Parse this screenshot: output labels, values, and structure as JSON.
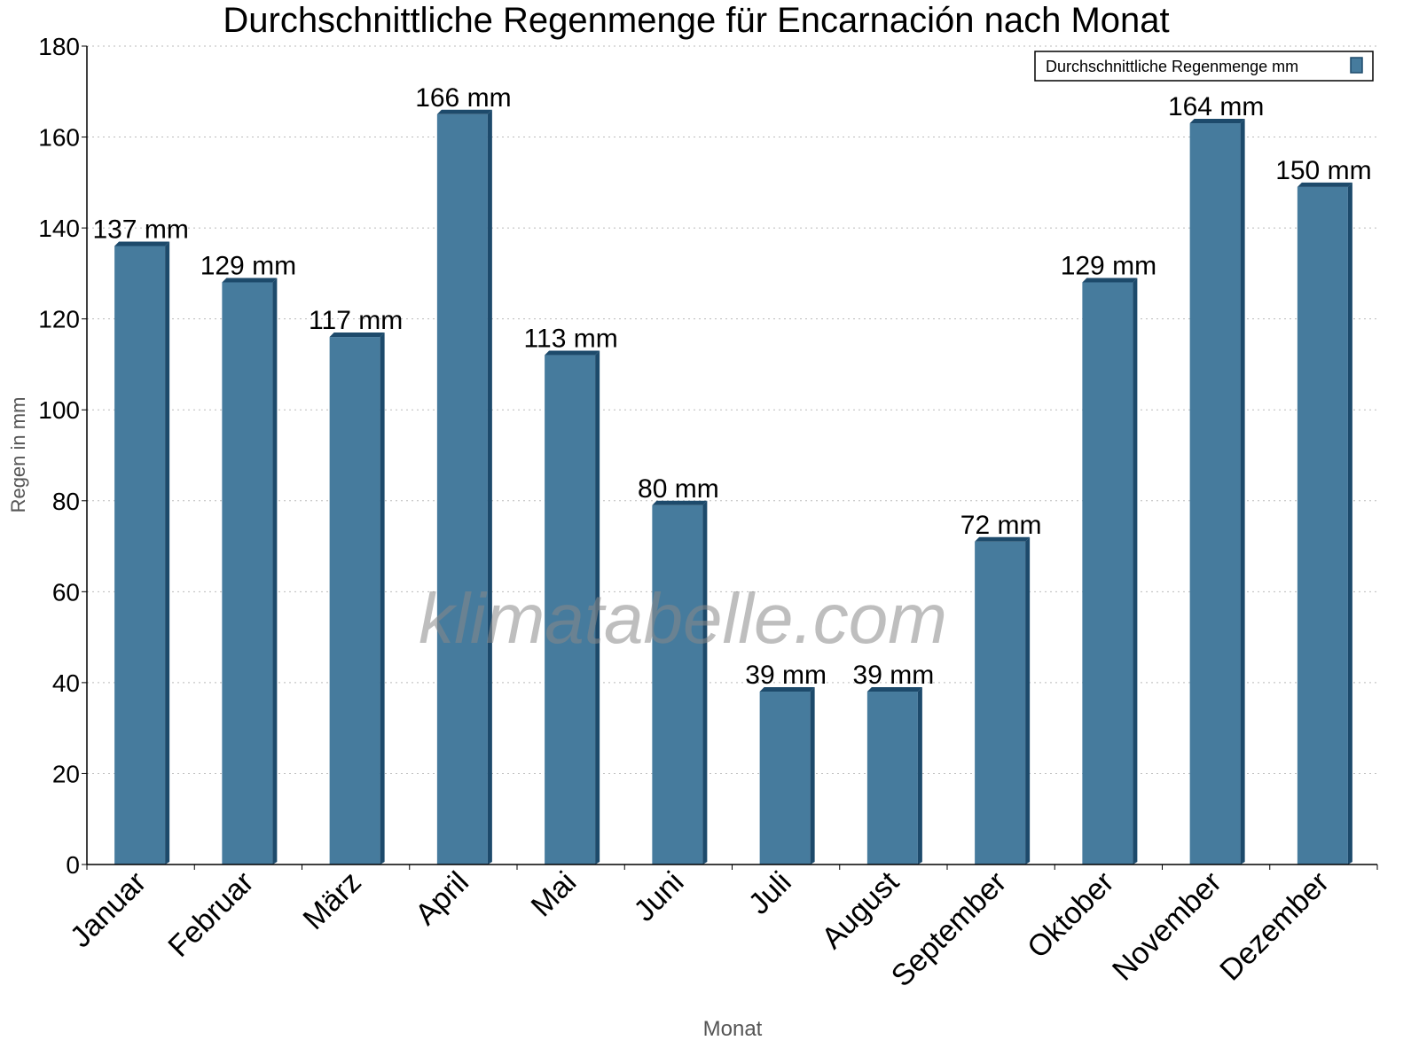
{
  "chart_data": {
    "type": "bar",
    "title": "Durchschnittliche Regenmenge für Encarnación nach Monat",
    "xlabel": "Monat",
    "ylabel": "Regen in mm",
    "categories": [
      "Januar",
      "Februar",
      "März",
      "April",
      "Mai",
      "Juni",
      "Juli",
      "August",
      "September",
      "Oktober",
      "November",
      "Dezember"
    ],
    "series": [
      {
        "name": "Durchschnittliche Regenmenge mm",
        "values": [
          137,
          129,
          117,
          166,
          113,
          80,
          39,
          39,
          72,
          129,
          164,
          150
        ],
        "color": "#467b9d",
        "side_color": "#1d4a6b"
      }
    ],
    "data_labels": [
      "137 mm",
      "129 mm",
      "117 mm",
      "166 mm",
      "113 mm",
      "80 mm",
      "39 mm",
      "39 mm",
      "72 mm",
      "129 mm",
      "164 mm",
      "150 mm"
    ],
    "ylim": [
      0,
      180
    ],
    "yticks": [
      "0",
      "20",
      "40",
      "60",
      "80",
      "100",
      "120",
      "140",
      "160",
      "180"
    ],
    "grid": true,
    "legend_position": "top-right",
    "watermark": "klimatabelle.com"
  }
}
